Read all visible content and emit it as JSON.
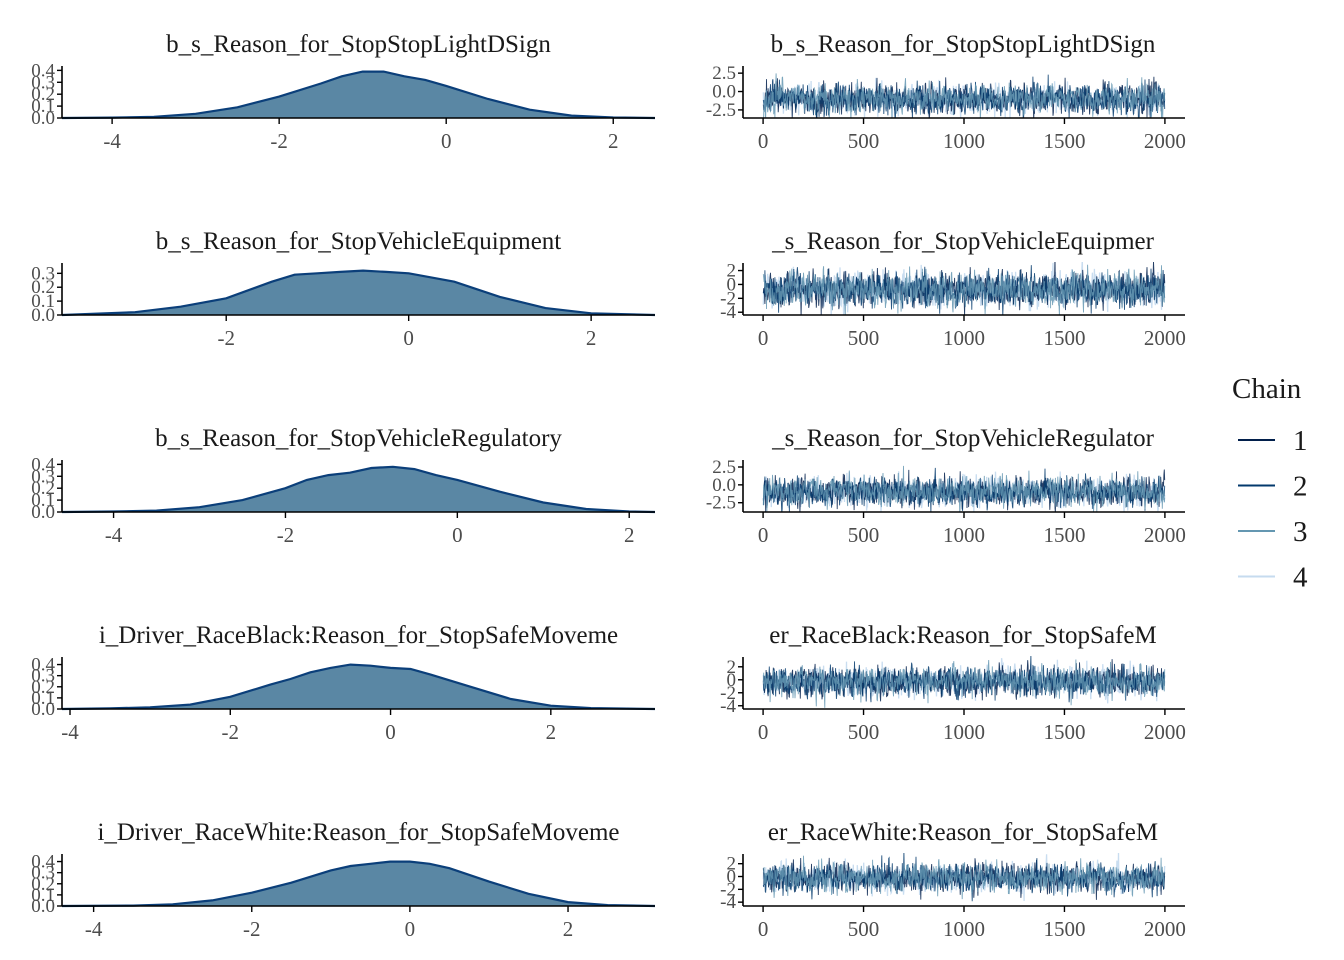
{
  "legend": {
    "title": "Chain",
    "items": [
      {
        "label": "1",
        "color": "#011f4b"
      },
      {
        "label": "2",
        "color": "#03396c"
      },
      {
        "label": "3",
        "color": "#6497b1"
      },
      {
        "label": "4",
        "color": "#c6dbef"
      }
    ]
  },
  "colors": {
    "density_fill": "#5a87a4",
    "density_line": "#0b3f7a",
    "axis": "#000000"
  },
  "chart_data": [
    {
      "type": "area",
      "title": "b_s_Reason_for_StopStopLightDSign",
      "xlim": [
        -4.6,
        2.5
      ],
      "ylim": [
        0,
        0.42
      ],
      "x_ticks": [
        -4,
        -2,
        0,
        2
      ],
      "y_ticks": [
        "0.0",
        "0.1",
        "0.2",
        "0.3",
        "0.4"
      ],
      "x": [
        -4.6,
        -4.0,
        -3.5,
        -3.0,
        -2.5,
        -2.0,
        -1.5,
        -1.25,
        -1.0,
        -0.75,
        -0.5,
        -0.25,
        0.0,
        0.5,
        1.0,
        1.5,
        2.0,
        2.5
      ],
      "density": [
        0.0,
        0.003,
        0.01,
        0.035,
        0.09,
        0.18,
        0.29,
        0.35,
        0.39,
        0.39,
        0.35,
        0.32,
        0.27,
        0.16,
        0.07,
        0.02,
        0.004,
        0.0
      ]
    },
    {
      "type": "line",
      "title": "b_s_Reason_for_StopStopLightDSign",
      "xlim": [
        -100,
        2100
      ],
      "ylim": [
        -3.6,
        3.2
      ],
      "x_ticks": [
        0,
        500,
        1000,
        1500,
        2000
      ],
      "y_ticks": [
        "-2.5",
        "0.0",
        "2.5"
      ],
      "y_tick_values": [
        -2.5,
        0.0,
        2.5
      ],
      "series_names": [
        "1",
        "2",
        "3",
        "4"
      ],
      "n_iterations": 2000,
      "center": -1.0,
      "spread": 1.0
    },
    {
      "type": "area",
      "title": "b_s_Reason_for_StopVehicleEquipment",
      "xlim": [
        -3.8,
        2.7
      ],
      "ylim": [
        0,
        0.36
      ],
      "x_ticks": [
        -2,
        0,
        2
      ],
      "y_ticks": [
        "0.0",
        "0.1",
        "0.2",
        "0.3"
      ],
      "x": [
        -3.8,
        -3.0,
        -2.5,
        -2.0,
        -1.5,
        -1.25,
        -1.0,
        -0.75,
        -0.5,
        -0.25,
        0.0,
        0.5,
        1.0,
        1.5,
        2.0,
        2.7
      ],
      "density": [
        0.0,
        0.02,
        0.06,
        0.12,
        0.24,
        0.29,
        0.3,
        0.31,
        0.32,
        0.31,
        0.3,
        0.24,
        0.13,
        0.05,
        0.012,
        0.0
      ]
    },
    {
      "type": "line",
      "title": "_s_Reason_for_StopVehicleEquipmer",
      "xlim": [
        -100,
        2100
      ],
      "ylim": [
        -4.4,
        2.8
      ],
      "x_ticks": [
        0,
        500,
        1000,
        1500,
        2000
      ],
      "y_ticks": [
        "-4",
        "-2",
        "0",
        "2"
      ],
      "y_tick_values": [
        -4,
        -2,
        0,
        2
      ],
      "series_names": [
        "1",
        "2",
        "3",
        "4"
      ],
      "n_iterations": 2000,
      "center": -0.7,
      "spread": 1.2
    },
    {
      "type": "area",
      "title": "b_s_Reason_for_StopVehicleRegulatory",
      "xlim": [
        -4.6,
        2.3
      ],
      "ylim": [
        0,
        0.42
      ],
      "x_ticks": [
        -4,
        -2,
        0,
        2
      ],
      "y_ticks": [
        "0.0",
        "0.1",
        "0.2",
        "0.3",
        "0.4"
      ],
      "x": [
        -4.6,
        -4.0,
        -3.5,
        -3.0,
        -2.5,
        -2.0,
        -1.75,
        -1.5,
        -1.25,
        -1.0,
        -0.75,
        -0.5,
        -0.25,
        0.0,
        0.5,
        1.0,
        1.5,
        2.0,
        2.3
      ],
      "density": [
        0.0,
        0.004,
        0.012,
        0.04,
        0.1,
        0.2,
        0.27,
        0.31,
        0.33,
        0.37,
        0.38,
        0.36,
        0.31,
        0.27,
        0.17,
        0.08,
        0.025,
        0.004,
        0.0
      ]
    },
    {
      "type": "line",
      "title": "_s_Reason_for_StopVehicleRegulator",
      "xlim": [
        -100,
        2100
      ],
      "ylim": [
        -3.8,
        3.2
      ],
      "x_ticks": [
        0,
        500,
        1000,
        1500,
        2000
      ],
      "y_ticks": [
        "-2.5",
        "0.0",
        "2.5"
      ],
      "y_tick_values": [
        -2.5,
        0.0,
        2.5
      ],
      "series_names": [
        "1",
        "2",
        "3",
        "4"
      ],
      "n_iterations": 2000,
      "center": -1.0,
      "spread": 1.0
    },
    {
      "type": "area",
      "title": "i_Driver_RaceBlack:Reason_for_StopSafeMoveme",
      "xlim": [
        -4.1,
        3.3
      ],
      "ylim": [
        0,
        0.45
      ],
      "x_ticks": [
        -4,
        -2,
        0,
        2
      ],
      "y_ticks": [
        "0.0",
        "0.1",
        "0.2",
        "0.3",
        "0.4"
      ],
      "x": [
        -4.1,
        -3.5,
        -3.0,
        -2.5,
        -2.0,
        -1.5,
        -1.25,
        -1.0,
        -0.75,
        -0.5,
        -0.25,
        0.0,
        0.25,
        0.5,
        1.0,
        1.5,
        2.0,
        2.5,
        3.3
      ],
      "density": [
        0.0,
        0.005,
        0.015,
        0.04,
        0.11,
        0.22,
        0.27,
        0.33,
        0.37,
        0.4,
        0.39,
        0.37,
        0.36,
        0.31,
        0.2,
        0.09,
        0.03,
        0.008,
        0.0
      ]
    },
    {
      "type": "line",
      "title": "er_RaceBlack:Reason_for_StopSafeM",
      "xlim": [
        -100,
        2100
      ],
      "ylim": [
        -4.5,
        3.2
      ],
      "x_ticks": [
        0,
        500,
        1000,
        1500,
        2000
      ],
      "y_ticks": [
        "-4",
        "-2",
        "0",
        "2"
      ],
      "y_tick_values": [
        -4,
        -2,
        0,
        2
      ],
      "series_names": [
        "1",
        "2",
        "3",
        "4"
      ],
      "n_iterations": 2000,
      "center": -0.3,
      "spread": 1.1
    },
    {
      "type": "area",
      "title": "i_Driver_RaceWhite:Reason_for_StopSafeMoveme",
      "xlim": [
        -4.4,
        3.1
      ],
      "ylim": [
        0,
        0.45
      ],
      "x_ticks": [
        -4,
        -2,
        0,
        2
      ],
      "y_ticks": [
        "0.0",
        "0.1",
        "0.2",
        "0.3",
        "0.4"
      ],
      "x": [
        -4.4,
        -3.5,
        -3.0,
        -2.5,
        -2.0,
        -1.5,
        -1.0,
        -0.75,
        -0.5,
        -0.25,
        0.0,
        0.25,
        0.5,
        1.0,
        1.5,
        2.0,
        2.5,
        3.1
      ],
      "density": [
        0.0,
        0.004,
        0.015,
        0.05,
        0.12,
        0.21,
        0.32,
        0.36,
        0.38,
        0.4,
        0.4,
        0.38,
        0.34,
        0.22,
        0.11,
        0.035,
        0.008,
        0.0
      ]
    },
    {
      "type": "line",
      "title": "er_RaceWhite:Reason_for_StopSafeM",
      "xlim": [
        -100,
        2100
      ],
      "ylim": [
        -4.6,
        3.2
      ],
      "x_ticks": [
        0,
        500,
        1000,
        1500,
        2000
      ],
      "y_ticks": [
        "-4",
        "-2",
        "0",
        "2"
      ],
      "y_tick_values": [
        -4,
        -2,
        0,
        2
      ],
      "series_names": [
        "1",
        "2",
        "3",
        "4"
      ],
      "n_iterations": 2000,
      "center": -0.3,
      "spread": 1.1
    }
  ]
}
